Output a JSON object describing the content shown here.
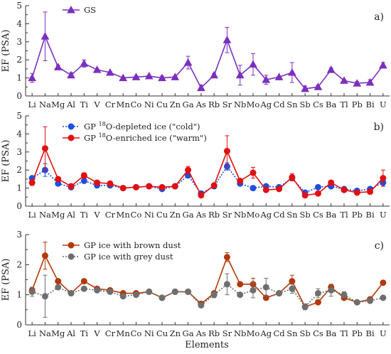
{
  "x_title": "Elements",
  "chart_data": [
    {
      "type": "line",
      "panel_label": "a)",
      "ylabel": "EF (PSA)",
      "ylim": [
        0,
        5
      ],
      "yticks": [
        0,
        1,
        2,
        3,
        4,
        5
      ],
      "categories": [
        "Li",
        "Na",
        "Mg",
        "Al",
        "Ti",
        "V",
        "Cr",
        "Mn",
        "Co",
        "Ni",
        "Cu",
        "Zn",
        "Ga",
        "As",
        "Rb",
        "Sr",
        "Nb",
        "Mo",
        "Ag",
        "Cd",
        "Sn",
        "Sb",
        "Cs",
        "Ba",
        "Tl",
        "Pb",
        "Bi",
        "U"
      ],
      "legend": [
        {
          "label": "GS"
        }
      ],
      "series": [
        {
          "name": "GS",
          "color": "#7b2fbe",
          "marker": "triangle",
          "dashed": false,
          "values": [
            1.0,
            3.3,
            1.6,
            1.15,
            1.8,
            1.45,
            1.3,
            1.0,
            1.05,
            1.1,
            1.0,
            1.05,
            1.85,
            0.45,
            1.15,
            3.1,
            1.15,
            1.75,
            0.9,
            1.05,
            1.3,
            0.4,
            0.5,
            1.45,
            0.85,
            0.7,
            0.75,
            1.7
          ],
          "errors": [
            0.25,
            1.35,
            0.1,
            0.15,
            0.2,
            0.05,
            0.05,
            0.05,
            0.05,
            0.05,
            0.1,
            0.05,
            0.35,
            0.15,
            0.1,
            0.7,
            0.55,
            0.6,
            0.25,
            0.05,
            0.55,
            0.15,
            0.1,
            0.1,
            0.05,
            0.1,
            0.15,
            0.15
          ]
        }
      ]
    },
    {
      "type": "line",
      "panel_label": "b)",
      "ylabel": "EF (PSA)",
      "ylim": [
        0,
        5
      ],
      "yticks": [
        0,
        1,
        2,
        3,
        4,
        5
      ],
      "categories": [
        "Li",
        "Na",
        "Mg",
        "Al",
        "Ti",
        "V",
        "Cr",
        "Mn",
        "Co",
        "Ni",
        "Cu",
        "Zn",
        "Ga",
        "As",
        "Rb",
        "Sr",
        "Nb",
        "Mo",
        "Ag",
        "Cd",
        "Sn",
        "Sb",
        "Cs",
        "Ba",
        "Tl",
        "Pb",
        "Bi",
        "U"
      ],
      "legend": [
        {
          "prefix": "GP",
          "sup": "18",
          "suffix": "O-depleted ice (\"cold\")"
        },
        {
          "prefix": "GP",
          "sup": "18",
          "suffix": "O-enriched ice (\"warm\")"
        }
      ],
      "series": [
        {
          "name": "GP 18O-depleted ice (\"cold\")",
          "color": "#1f4fe0",
          "marker": "circle",
          "dashed": true,
          "values": [
            1.55,
            2.0,
            1.25,
            1.05,
            1.4,
            1.15,
            1.15,
            1.0,
            1.05,
            1.1,
            0.95,
            1.1,
            1.7,
            0.7,
            1.1,
            2.2,
            1.25,
            1.0,
            1.1,
            1.05,
            1.55,
            0.75,
            1.05,
            1.1,
            0.95,
            0.85,
            0.95,
            1.3
          ],
          "errors": [
            0.1,
            0.35,
            0.05,
            0.05,
            0.1,
            0.05,
            0.05,
            0.05,
            0.05,
            0.05,
            0.05,
            0.05,
            0.1,
            0.05,
            0.05,
            0.2,
            0.1,
            0.05,
            0.05,
            0.05,
            0.1,
            0.05,
            0.05,
            0.05,
            0.05,
            0.05,
            0.1,
            0.2
          ]
        },
        {
          "name": "GP 18O-enriched ice (\"warm\")",
          "color": "#e01010",
          "marker": "circle",
          "dashed": false,
          "values": [
            1.3,
            3.2,
            1.5,
            1.1,
            1.7,
            1.3,
            1.25,
            1.0,
            1.05,
            1.1,
            1.05,
            1.1,
            2.0,
            0.6,
            1.15,
            3.05,
            1.4,
            1.85,
            0.9,
            0.95,
            1.6,
            0.6,
            0.7,
            1.3,
            0.9,
            0.75,
            0.8,
            1.55
          ],
          "errors": [
            0.15,
            1.2,
            0.1,
            0.05,
            0.15,
            0.05,
            0.05,
            0.05,
            0.05,
            0.05,
            0.05,
            0.05,
            0.2,
            0.05,
            0.05,
            0.85,
            0.1,
            0.3,
            0.1,
            0.05,
            0.2,
            0.05,
            0.05,
            0.1,
            0.05,
            0.05,
            0.1,
            0.45
          ]
        }
      ]
    },
    {
      "type": "line",
      "panel_label": "c)",
      "ylabel": "EF (PSA)",
      "ylim": [
        0,
        3
      ],
      "yticks": [
        0,
        1,
        2,
        3
      ],
      "categories": [
        "Li",
        "Na",
        "Mg",
        "Al",
        "Ti",
        "V",
        "Cr",
        "Mn",
        "Co",
        "Ni",
        "Cu",
        "Zn",
        "Ga",
        "As",
        "Rb",
        "Sr",
        "Nb",
        "Mo",
        "Ag",
        "Cd",
        "Sn",
        "Sb",
        "Cs",
        "Ba",
        "Tl",
        "Pb",
        "Bi",
        "U"
      ],
      "legend": [
        {
          "label": "GP ice with brown dust"
        },
        {
          "label": "GP ice with grey dust"
        }
      ],
      "series": [
        {
          "name": "GP ice with brown dust",
          "color": "#b03a0a",
          "marker": "circle",
          "dashed": false,
          "values": [
            1.15,
            2.3,
            1.45,
            1.05,
            1.45,
            1.2,
            1.15,
            1.05,
            1.05,
            1.1,
            0.9,
            1.1,
            1.1,
            0.7,
            1.05,
            2.25,
            1.35,
            1.35,
            0.9,
            1.05,
            1.45,
            0.6,
            0.75,
            1.25,
            0.9,
            0.75,
            0.85,
            1.4
          ],
          "errors": [
            0.1,
            0.45,
            0.05,
            0.05,
            0.05,
            0.05,
            0.05,
            0.05,
            0.05,
            0.05,
            0.05,
            0.05,
            0.05,
            0.05,
            0.05,
            0.15,
            0.05,
            0.2,
            0.05,
            0.05,
            0.2,
            0.05,
            0.05,
            0.1,
            0.05,
            0.05,
            0.05,
            0.05
          ]
        },
        {
          "name": "GP ice with grey dust",
          "color": "#6e6e6e",
          "marker": "circle",
          "dashed": true,
          "values": [
            1.1,
            0.95,
            1.25,
            1.05,
            1.2,
            1.15,
            1.1,
            0.95,
            1.0,
            1.1,
            0.9,
            1.1,
            1.1,
            0.65,
            1.0,
            1.35,
            1.0,
            1.15,
            1.25,
            1.05,
            1.2,
            0.6,
            1.05,
            1.15,
            1.0,
            0.75,
            0.8,
            0.9
          ],
          "errors": [
            0.15,
            0.7,
            0.05,
            0.05,
            0.05,
            0.05,
            0.05,
            0.05,
            0.05,
            0.05,
            0.05,
            0.05,
            0.05,
            0.05,
            0.1,
            0.35,
            0.05,
            0.25,
            0.3,
            0.05,
            0.15,
            0.1,
            0.15,
            0.2,
            0.1,
            0.05,
            0.05,
            0.05
          ]
        }
      ]
    }
  ]
}
